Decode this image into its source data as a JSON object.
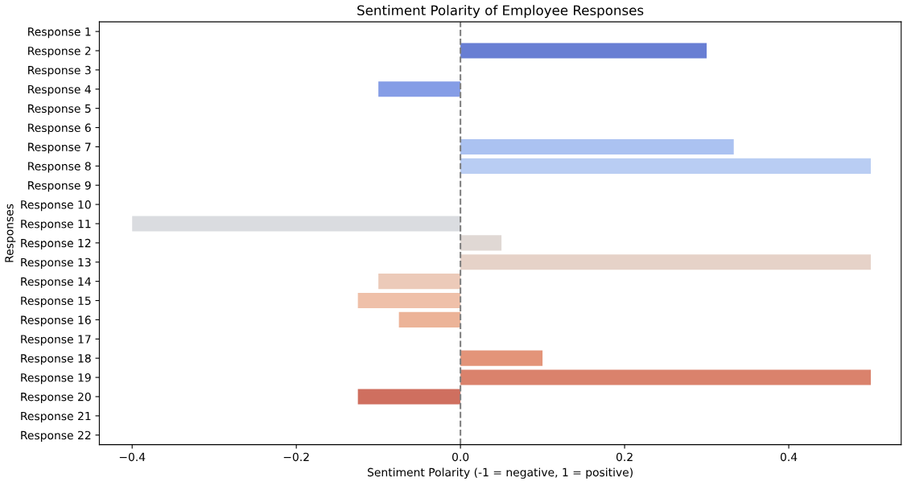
{
  "chart_data": {
    "type": "bar",
    "orientation": "horizontal",
    "title": "Sentiment Polarity of Employee Responses",
    "xlabel": "Sentiment Polarity (-1 = negative, 1 = positive)",
    "ylabel": "Responses",
    "categories": [
      "Response 1",
      "Response 2",
      "Response 3",
      "Response 4",
      "Response 5",
      "Response 6",
      "Response 7",
      "Response 8",
      "Response 9",
      "Response 10",
      "Response 11",
      "Response 12",
      "Response 13",
      "Response 14",
      "Response 15",
      "Response 16",
      "Response 17",
      "Response 18",
      "Response 19",
      "Response 20",
      "Response 21",
      "Response 22"
    ],
    "values": [
      0,
      0.3,
      0,
      -0.1,
      0,
      0,
      0.333,
      0.5,
      0,
      0,
      -0.4,
      0.05,
      0.5,
      -0.1,
      -0.125,
      -0.075,
      0,
      0.1,
      0.5,
      -0.125,
      0,
      0
    ],
    "colors": [
      "#5b6fcf",
      "#687ed3",
      "#7589da",
      "#859de6",
      "#93a8e8",
      "#a0b5ec",
      "#abc2f1",
      "#b9cdf3",
      "#c5d3ef",
      "#d0d7ea",
      "#dadce0",
      "#e0d8d4",
      "#e6d2c8",
      "#eccab9",
      "#efc0a9",
      "#ecb398",
      "#e9a487",
      "#e39479",
      "#da826c",
      "#cf6f5f",
      "#c35a51",
      "#b64444"
    ],
    "xlim": [
      -0.44,
      0.537
    ],
    "xticks": [
      {
        "value": -0.4,
        "label": "−0.4"
      },
      {
        "value": -0.2,
        "label": "−0.2"
      },
      {
        "value": 0,
        "label": "0.0"
      },
      0.2,
      0.4
    ],
    "ref_lines": [
      {
        "axis": "x",
        "value": 0,
        "color": "#808080",
        "line_style": "dashed"
      }
    ],
    "grid": false
  }
}
